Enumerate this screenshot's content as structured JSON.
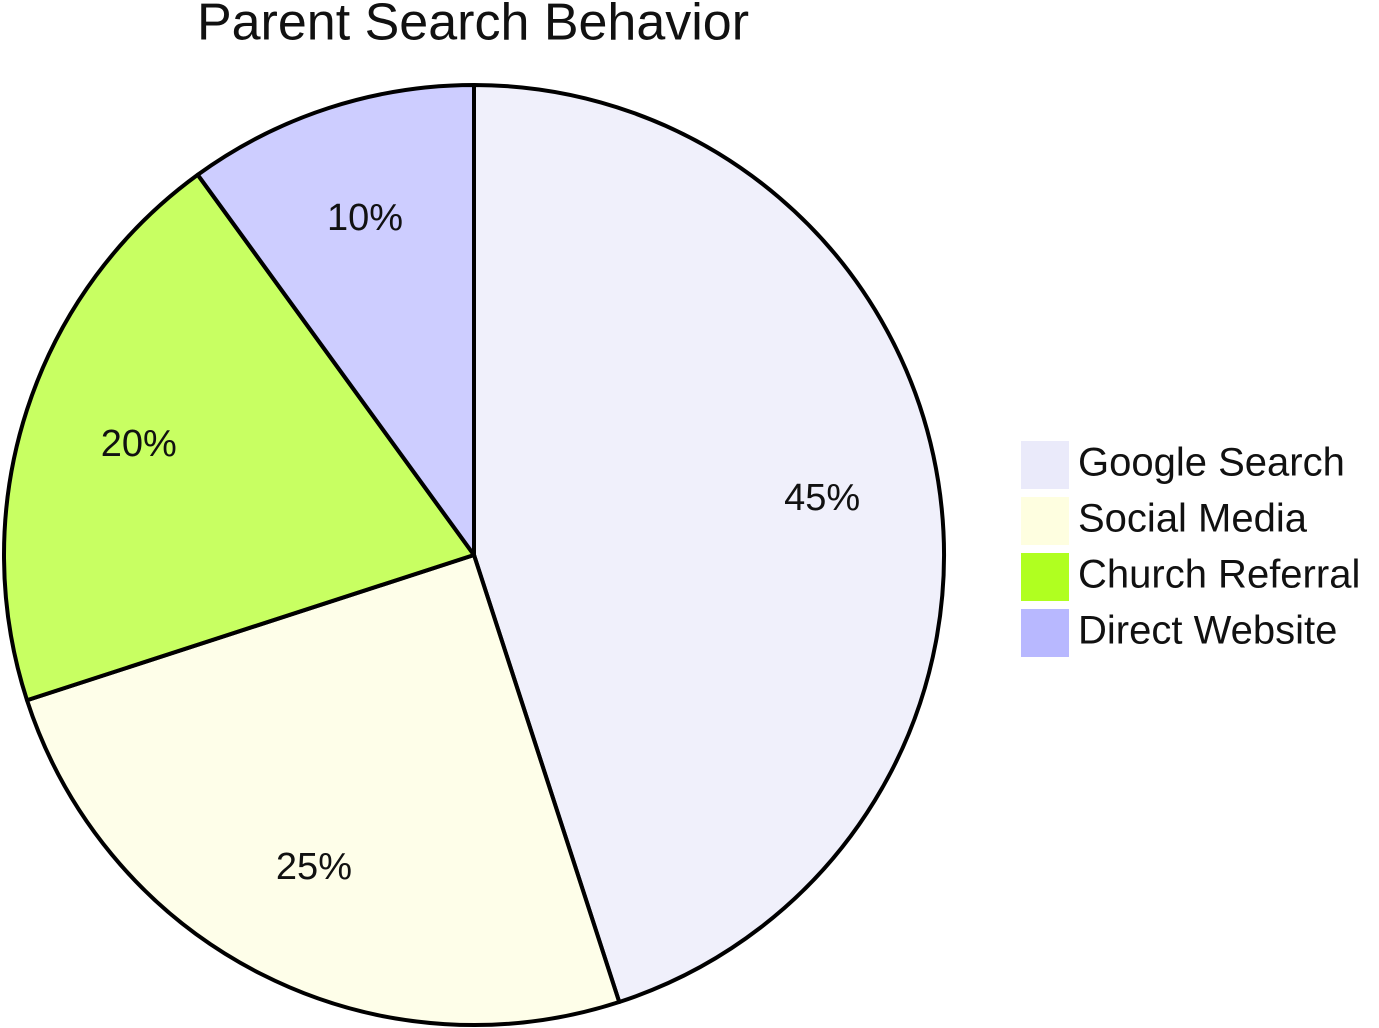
{
  "chart_data": {
    "type": "pie",
    "title": "Parent Search Behavior",
    "categories": [
      "Google Search",
      "Social Media",
      "Church Referral",
      "Direct Website"
    ],
    "values": [
      45,
      25,
      20,
      10
    ],
    "value_labels": [
      "45%",
      "25%",
      "20%",
      "10%"
    ],
    "colors": [
      "#eaeafa",
      "#fefee0",
      "#b0ff20",
      "#b8b8ff"
    ],
    "legend": "right"
  }
}
